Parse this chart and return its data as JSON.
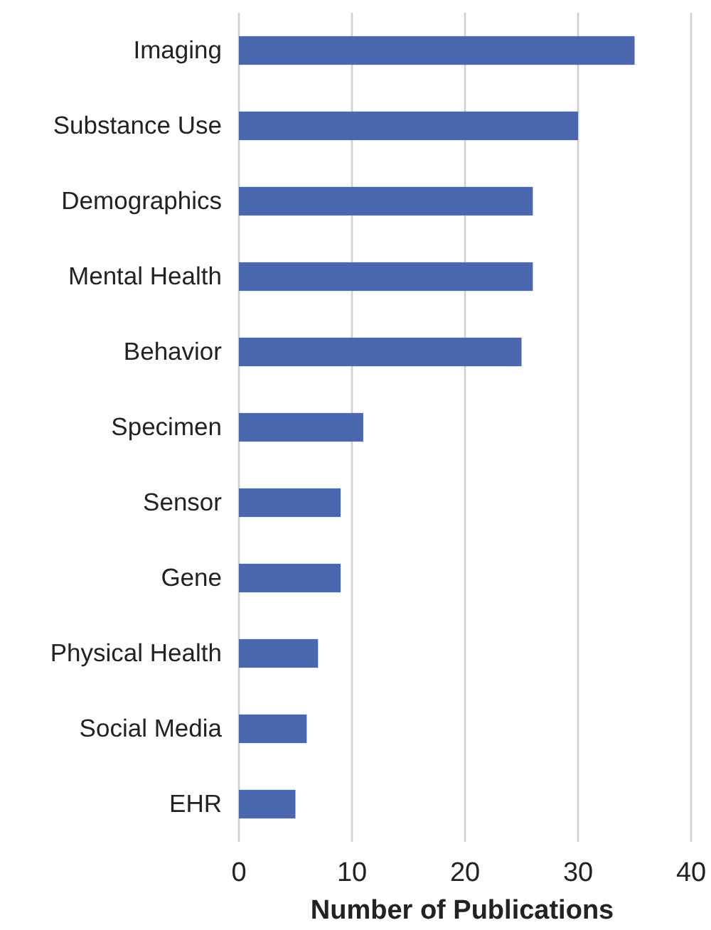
{
  "chart_data": {
    "type": "bar",
    "orientation": "horizontal",
    "xlabel": "Number of Publications",
    "categories": [
      "Imaging",
      "Substance Use",
      "Demographics",
      "Mental Health",
      "Behavior",
      "Specimen",
      "Sensor",
      "Gene",
      "Physical Health",
      "Social Media",
      "EHR"
    ],
    "values": [
      35,
      30,
      26,
      26,
      25,
      11,
      9,
      9,
      7,
      6,
      5
    ],
    "color": "#4a67b0",
    "xlim": [
      0,
      40
    ],
    "xticks": [
      0,
      10,
      20,
      30,
      40
    ],
    "grid": "x"
  }
}
